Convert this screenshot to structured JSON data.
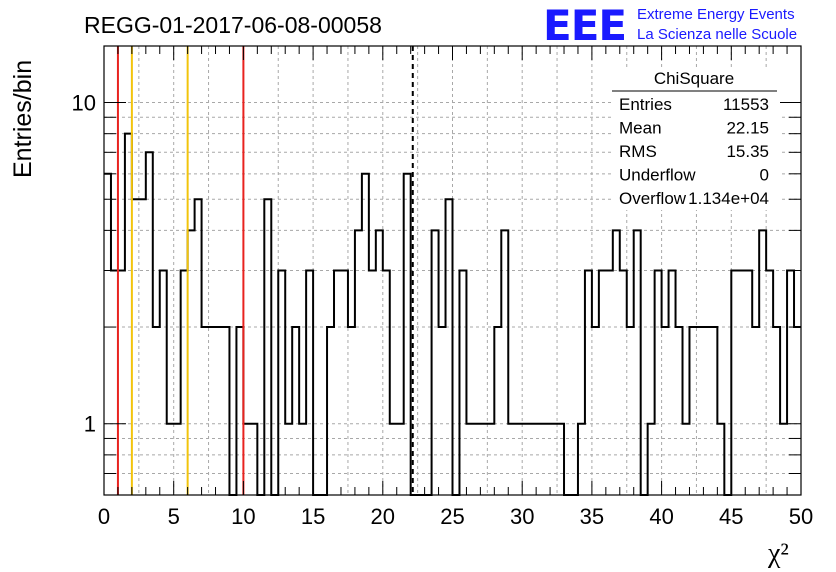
{
  "chart_data": {
    "type": "histogram",
    "title": "REGG-01-2017-06-08-00058",
    "xlabel": "χ²",
    "ylabel": "Entries/bin",
    "xlim": [
      0,
      50
    ],
    "ylim": [
      0.6,
      15
    ],
    "y_scale": "log",
    "x_ticks": [
      "0",
      "5",
      "10",
      "15",
      "20",
      "25",
      "30",
      "35",
      "40",
      "45",
      "50"
    ],
    "y_ticks": [
      "1",
      "10"
    ],
    "grid": true,
    "bin_width": 0.5,
    "bin_values": [
      6,
      3,
      3,
      8,
      5,
      5,
      7,
      2,
      3,
      1,
      1,
      3,
      4,
      5,
      2,
      2,
      2,
      2,
      0.5,
      2,
      1,
      1,
      0.5,
      5,
      0.5,
      3,
      1,
      2,
      1,
      3,
      0.5,
      0.5,
      2,
      3,
      3,
      2,
      4,
      6,
      3,
      4,
      3,
      1,
      1,
      6,
      0.5,
      0.5,
      0.5,
      4,
      2,
      5,
      0.5,
      3,
      1,
      1,
      1,
      1,
      2,
      4,
      1,
      1,
      1,
      1,
      1,
      1,
      1,
      1,
      0.5,
      0.5,
      1,
      3,
      2,
      3,
      3,
      4,
      3,
      2,
      4,
      0.5,
      1,
      3,
      2,
      3,
      2,
      1,
      2,
      2,
      2,
      2,
      1,
      0.5,
      3,
      3,
      3,
      2,
      4,
      3,
      2,
      1,
      3,
      2
    ],
    "vertical_lines": [
      {
        "x": 1,
        "color": "#e8231f",
        "style": "solid"
      },
      {
        "x": 10,
        "color": "#e8231f",
        "style": "solid"
      },
      {
        "x": 2,
        "color": "#f2c40c",
        "style": "solid"
      },
      {
        "x": 6,
        "color": "#f2c40c",
        "style": "solid"
      },
      {
        "x": 22.15,
        "color": "#000000",
        "style": "dashed"
      }
    ],
    "stats_box": {
      "name": "ChiSquare",
      "rows": [
        {
          "label": "Entries",
          "value": "11553"
        },
        {
          "label": "Mean",
          "value": "22.15"
        },
        {
          "label": "RMS",
          "value": "15.35"
        },
        {
          "label": "Underflow",
          "value": "0"
        },
        {
          "label": "Overflow",
          "value": "1.134e+04"
        }
      ]
    },
    "logo": {
      "mark": "EEE",
      "line1": "Extreme Energy Events",
      "line2": "La Scienza nelle Scuole"
    }
  }
}
